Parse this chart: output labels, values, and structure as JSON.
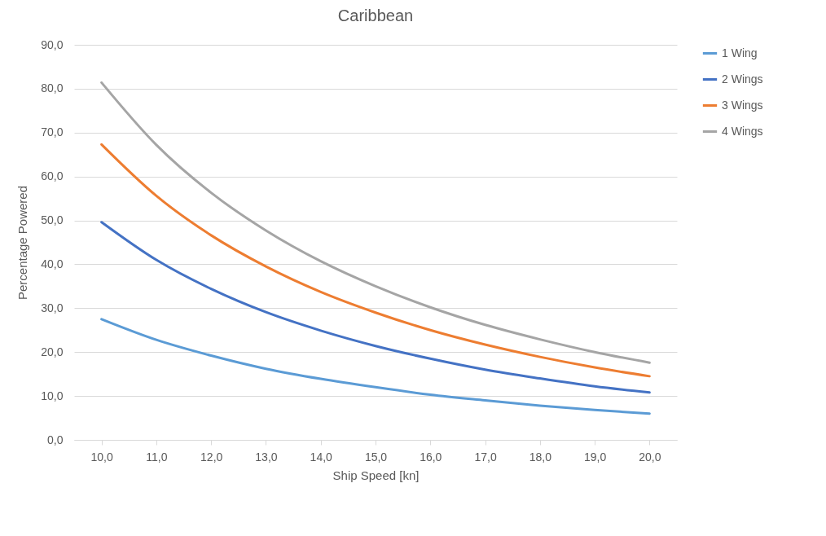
{
  "chart_data": {
    "type": "line",
    "title": "Caribbean",
    "xlabel": "Ship Speed [kn]",
    "ylabel": "Percentage Powered",
    "categories": [
      "10,0",
      "11,0",
      "12,0",
      "13,0",
      "14,0",
      "15,0",
      "16,0",
      "17,0",
      "18,0",
      "19,0",
      "20,0"
    ],
    "ylim": [
      0,
      90
    ],
    "yticks": [
      {
        "value": 0,
        "label": "0,0"
      },
      {
        "value": 10,
        "label": "10,0"
      },
      {
        "value": 20,
        "label": "20,0"
      },
      {
        "value": 30,
        "label": "30,0"
      },
      {
        "value": 40,
        "label": "40,0"
      },
      {
        "value": 50,
        "label": "50,0"
      },
      {
        "value": 60,
        "label": "60,0"
      },
      {
        "value": 70,
        "label": "70,0"
      },
      {
        "value": 80,
        "label": "80,0"
      },
      {
        "value": 90,
        "label": "90,0"
      }
    ],
    "grid": "y",
    "legend": "right",
    "marker": "none",
    "line_style": "solid",
    "series": [
      {
        "name": "1 Wing",
        "color": "#5b9bd5",
        "values": [
          27.5,
          22.8,
          19.2,
          16.2,
          13.9,
          12.0,
          10.3,
          9.0,
          7.8,
          6.8,
          6.0
        ]
      },
      {
        "name": "2 Wings",
        "color": "#4472c4",
        "values": [
          49.6,
          41.0,
          34.4,
          29.1,
          24.9,
          21.4,
          18.5,
          16.0,
          14.0,
          12.2,
          10.8
        ]
      },
      {
        "name": "3 Wings",
        "color": "#ed7d31",
        "values": [
          67.3,
          55.6,
          46.6,
          39.5,
          33.7,
          29.0,
          25.0,
          21.7,
          18.9,
          16.5,
          14.5
        ]
      },
      {
        "name": "4 Wings",
        "color": "#a5a5a5",
        "values": [
          81.4,
          67.2,
          56.3,
          47.7,
          40.7,
          35.0,
          30.2,
          26.2,
          22.9,
          20.0,
          17.6
        ]
      }
    ]
  }
}
